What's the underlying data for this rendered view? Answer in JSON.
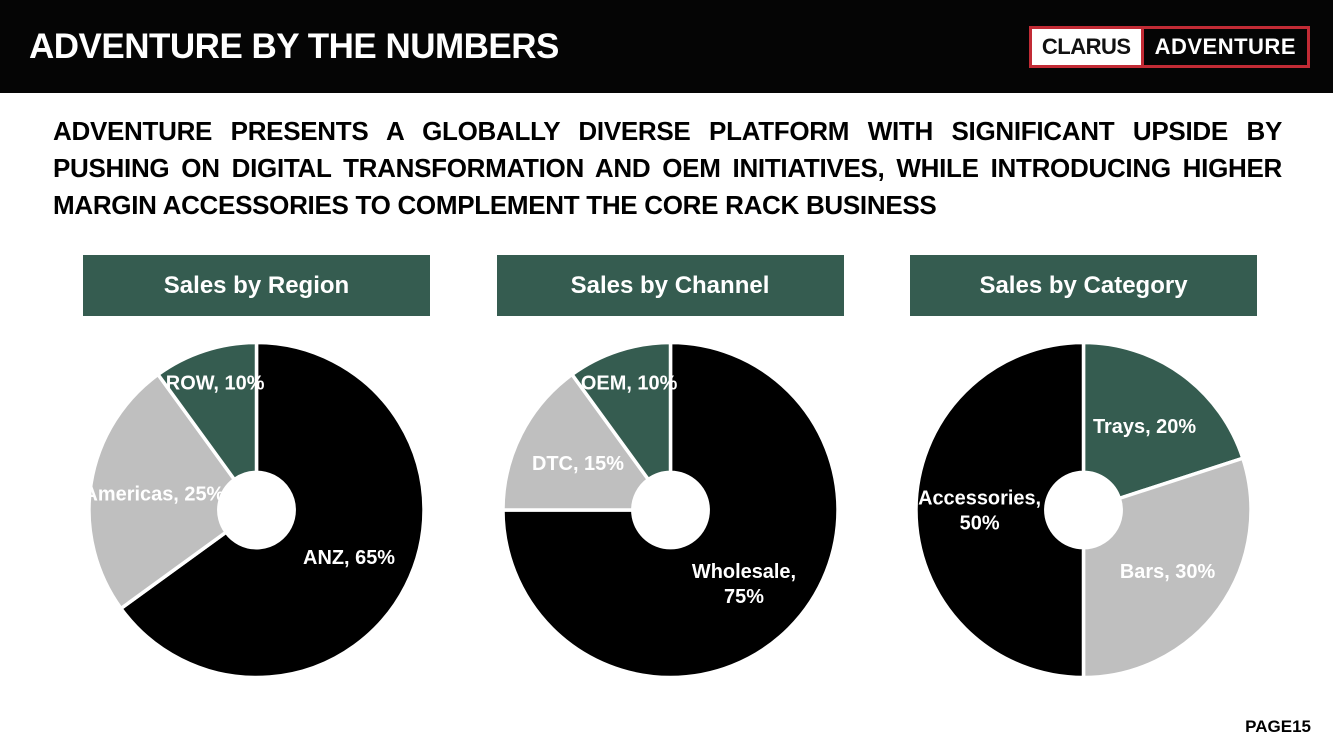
{
  "header": {
    "title": "ADVENTURE BY THE NUMBERS",
    "logo": {
      "left_text": "CLARUS",
      "right_text": "ADVENTURE",
      "border_color": "#C22B35"
    }
  },
  "intro_text": "ADVENTURE PRESENTS A GLOBALLY DIVERSE PLATFORM WITH SIGNIFICANT UPSIDE BY PUSHING ON DIGITAL TRANSFORMATION AND OEM INITIATIVES, WHILE INTRODUCING HIGHER MARGIN ACCESSORIES TO COMPLEMENT THE CORE RACK BUSINESS",
  "footer": {
    "page_label": "PAGE15"
  },
  "colors": {
    "accent_green": "#355C50",
    "slice_black": "#000000",
    "slice_gray": "#BFBFBF",
    "slice_green": "#355C50",
    "logo_red": "#C22B35",
    "bar_black": "#050505"
  },
  "chart_data": [
    {
      "type": "pie",
      "title": "Sales by Region",
      "donut_hole_ratio": 0.225,
      "start_angle": 0,
      "direction": "clockwise",
      "legend_position": "none",
      "slices": [
        {
          "label": "ANZ",
          "value": 65,
          "color": "#000000",
          "label_lines": [
            "ANZ, 65%"
          ]
        },
        {
          "label": "Americas",
          "value": 25,
          "color": "#BFBFBF",
          "label_lines": [
            "Americas, 25%"
          ]
        },
        {
          "label": "ROW",
          "value": 10,
          "color": "#355C50",
          "label_lines": [
            "ROW, 10%"
          ]
        }
      ]
    },
    {
      "type": "pie",
      "title": "Sales by Channel",
      "donut_hole_ratio": 0.225,
      "start_angle": 0,
      "direction": "clockwise",
      "legend_position": "none",
      "slices": [
        {
          "label": "Wholesale",
          "value": 75,
          "color": "#000000",
          "label_lines": [
            "Wholesale,",
            "75%"
          ]
        },
        {
          "label": "DTC",
          "value": 15,
          "color": "#BFBFBF",
          "label_lines": [
            "DTC, 15%"
          ]
        },
        {
          "label": "OEM",
          "value": 10,
          "color": "#355C50",
          "label_lines": [
            "OEM, 10%"
          ]
        }
      ]
    },
    {
      "type": "pie",
      "title": "Sales by Category",
      "donut_hole_ratio": 0.225,
      "start_angle": 0,
      "direction": "clockwise",
      "legend_position": "none",
      "slices": [
        {
          "label": "Trays",
          "value": 20,
          "color": "#355C50",
          "label_lines": [
            "Trays, 20%"
          ]
        },
        {
          "label": "Bars",
          "value": 30,
          "color": "#BFBFBF",
          "label_lines": [
            "Bars, 30%"
          ]
        },
        {
          "label": "Accessories",
          "value": 50,
          "color": "#000000",
          "label_lines": [
            "Accessories,",
            "50%"
          ]
        }
      ]
    }
  ]
}
